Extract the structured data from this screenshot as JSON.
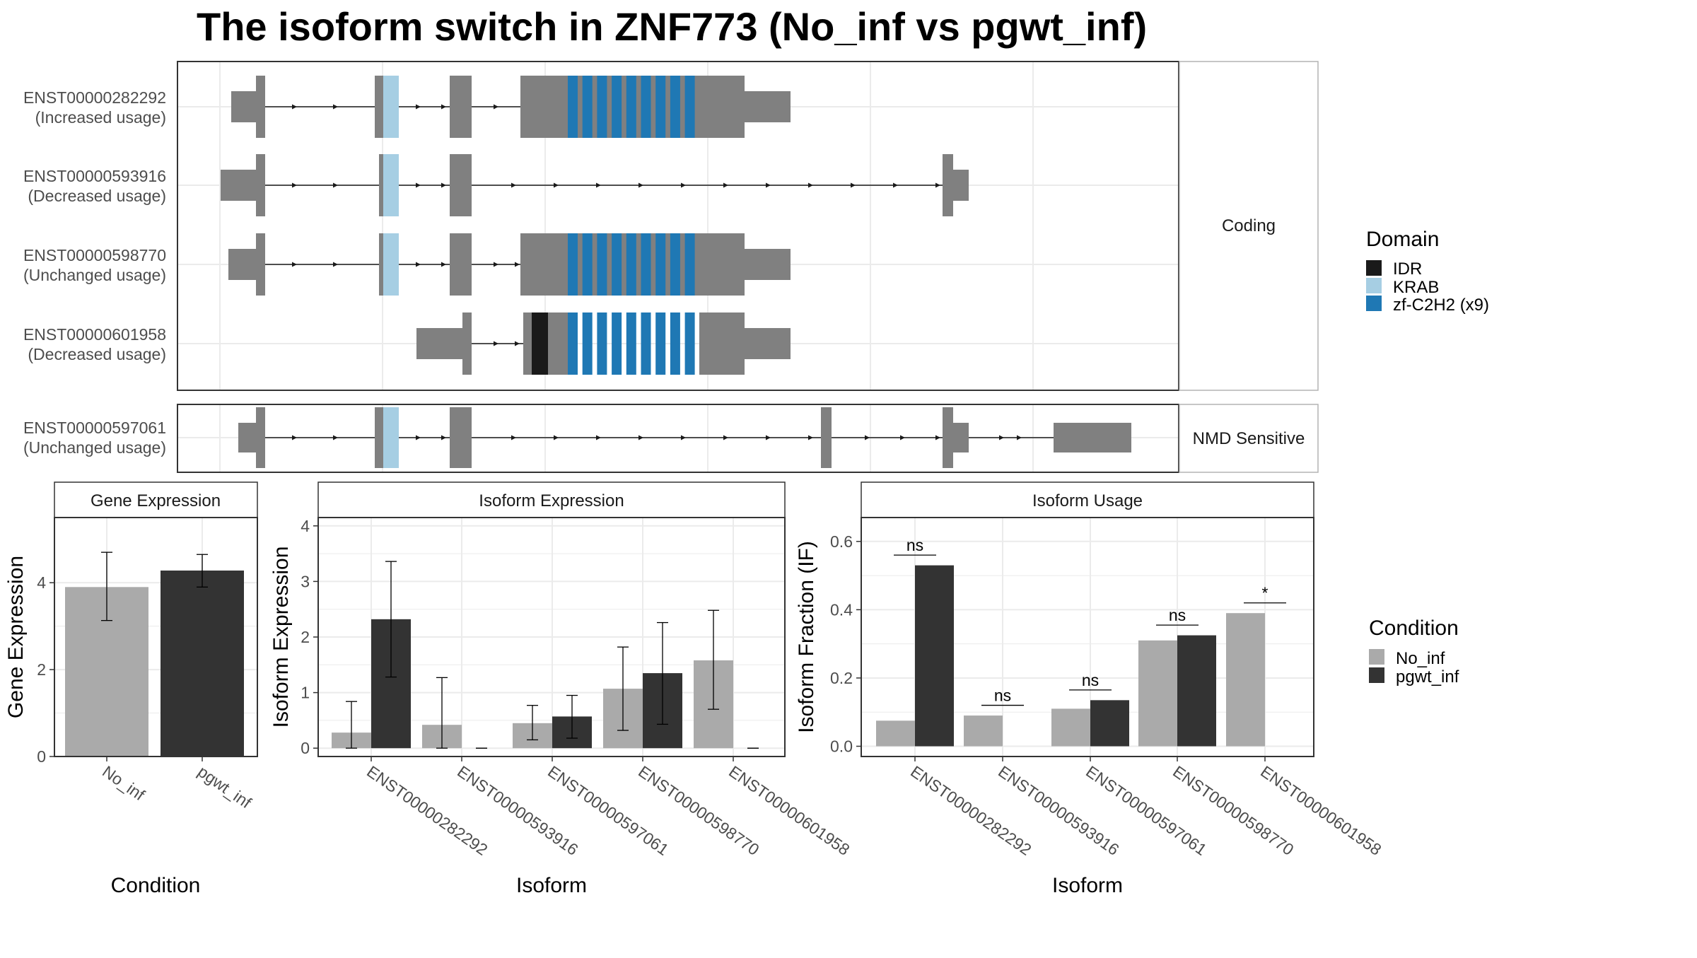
{
  "title": "The isoform switch in ZNF773 (No_inf vs pgwt_inf)",
  "colors": {
    "exon": "#808080",
    "IDR": "#1a1a1a",
    "KRAB": "#a6cee3",
    "zf-C2H2 (x9)": "#1f78b4",
    "No_inf": "#aaaaaa",
    "pgwt_inf": "#333333",
    "grid": "#ebebeb",
    "strip_fill": "#ffffff"
  },
  "structure": {
    "panels": [
      {
        "label": "Coding",
        "transcripts": [
          {
            "id": "ENST00000282292",
            "status": "(Increased usage)"
          },
          {
            "id": "ENST00000593916",
            "status": "(Decreased usage)"
          },
          {
            "id": "ENST00000598770",
            "status": "(Unchanged usage)"
          },
          {
            "id": "ENST00000601958",
            "status": "(Decreased usage)"
          }
        ]
      },
      {
        "label": "NMD Sensitive",
        "transcripts": [
          {
            "id": "ENST00000597061",
            "status": "(Unchanged usage)"
          }
        ]
      }
    ],
    "legend": {
      "title": "Domain",
      "items": [
        "IDR",
        "KRAB",
        "zf-C2H2 (x9)"
      ]
    }
  },
  "chart_data": [
    {
      "type": "bar",
      "title": "Gene Expression",
      "xlabel": "Condition",
      "ylabel": "Gene Expression",
      "categories": [
        "No_inf",
        "pgwt_inf"
      ],
      "values": [
        3.9,
        4.28
      ],
      "error_low": [
        3.13,
        3.9
      ],
      "error_high": [
        4.7,
        4.65
      ],
      "ylim": [
        0,
        5.5
      ],
      "yticks": [
        0,
        2,
        4
      ],
      "grid": true
    },
    {
      "type": "bar",
      "title": "Isoform Expression",
      "xlabel": "Isoform",
      "ylabel": "Isoform Expression",
      "categories": [
        "ENST00000282292",
        "ENST00000593916",
        "ENST00000597061",
        "ENST00000598770",
        "ENST00000601958"
      ],
      "series": [
        {
          "name": "No_inf",
          "values": [
            0.28,
            0.42,
            0.45,
            1.07,
            1.58
          ],
          "error_low": [
            0.0,
            0.0,
            0.15,
            0.32,
            0.7
          ],
          "error_high": [
            0.84,
            1.27,
            0.77,
            1.82,
            2.48
          ]
        },
        {
          "name": "pgwt_inf",
          "values": [
            2.32,
            0.0,
            0.57,
            1.35,
            0.0
          ],
          "error_low": [
            1.28,
            0.0,
            0.18,
            0.43,
            0.0
          ],
          "error_high": [
            3.36,
            0.0,
            0.95,
            2.26,
            0.0
          ]
        }
      ],
      "ylim": [
        -0.15,
        4.15
      ],
      "yticks": [
        0,
        1,
        2,
        3,
        4
      ],
      "grid": true
    },
    {
      "type": "bar",
      "title": "Isoform Usage",
      "xlabel": "Isoform",
      "ylabel": "Isoform Fraction (IF)",
      "categories": [
        "ENST00000282292",
        "ENST00000593916",
        "ENST00000597061",
        "ENST00000598770",
        "ENST00000601958"
      ],
      "series": [
        {
          "name": "No_inf",
          "values": [
            0.075,
            0.09,
            0.11,
            0.31,
            0.39
          ]
        },
        {
          "name": "pgwt_inf",
          "values": [
            0.53,
            0.0,
            0.135,
            0.325,
            0.0
          ]
        }
      ],
      "significance": [
        "ns",
        "ns",
        "ns",
        "ns",
        "*"
      ],
      "ylim": [
        -0.03,
        0.67
      ],
      "yticks": [
        "0.0",
        "0.2",
        "0.4",
        "0.6"
      ],
      "grid": true,
      "legend": {
        "title": "Condition",
        "position": "right"
      }
    }
  ]
}
